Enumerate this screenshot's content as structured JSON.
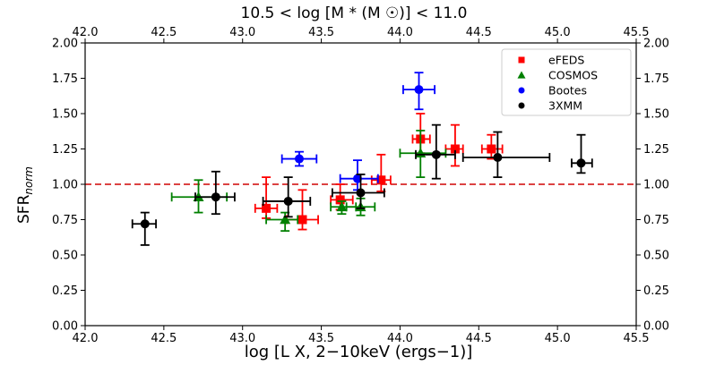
{
  "chart_data": {
    "type": "scatter",
    "title": "10.5 < log [M * (M ☉)] < 11.0",
    "xlabel": "log [L X, 2−10keV (ergs−1)]",
    "ylabel": "SFR norm",
    "xlim": [
      42.0,
      45.5
    ],
    "ylim": [
      0.0,
      2.0
    ],
    "x_ticks": [
      "42.0",
      "42.5",
      "43.0",
      "43.5",
      "44.0",
      "44.5",
      "45.0",
      "45.5"
    ],
    "y_ticks": [
      "0.00",
      "0.25",
      "0.50",
      "0.75",
      "1.00",
      "1.25",
      "1.50",
      "1.75",
      "2.00"
    ],
    "reference_line": {
      "y": 1.0,
      "style": "dashed",
      "color": "#d62728"
    },
    "legend_position": "top-right",
    "series": [
      {
        "name": "eFEDS",
        "color": "#ff0000",
        "marker": "square",
        "points": [
          {
            "x": 43.15,
            "y": 0.83,
            "xlo": 43.08,
            "xhi": 43.22,
            "ylo": 0.76,
            "yhi": 1.05
          },
          {
            "x": 43.38,
            "y": 0.75,
            "xlo": 43.28,
            "xhi": 43.48,
            "ylo": 0.68,
            "yhi": 0.96
          },
          {
            "x": 43.62,
            "y": 0.89,
            "xlo": 43.56,
            "xhi": 43.7,
            "ylo": 0.82,
            "yhi": 1.0
          },
          {
            "x": 43.88,
            "y": 1.03,
            "xlo": 43.82,
            "xhi": 43.94,
            "ylo": 0.95,
            "yhi": 1.21
          },
          {
            "x": 44.13,
            "y": 1.32,
            "xlo": 44.08,
            "xhi": 44.19,
            "ylo": 1.22,
            "yhi": 1.5
          },
          {
            "x": 44.35,
            "y": 1.25,
            "xlo": 44.29,
            "xhi": 44.4,
            "ylo": 1.13,
            "yhi": 1.42
          },
          {
            "x": 44.58,
            "y": 1.25,
            "xlo": 44.52,
            "xhi": 44.65,
            "ylo": 1.18,
            "yhi": 1.35
          }
        ]
      },
      {
        "name": "COSMOS",
        "color": "#008000",
        "marker": "triangle",
        "points": [
          {
            "x": 42.72,
            "y": 0.91,
            "xlo": 42.55,
            "xhi": 42.9,
            "ylo": 0.8,
            "yhi": 1.03
          },
          {
            "x": 43.27,
            "y": 0.75,
            "xlo": 43.15,
            "xhi": 43.35,
            "ylo": 0.67,
            "yhi": 0.8
          },
          {
            "x": 43.63,
            "y": 0.84,
            "xlo": 43.56,
            "xhi": 43.72,
            "ylo": 0.79,
            "yhi": 0.88
          },
          {
            "x": 43.75,
            "y": 0.84,
            "xlo": 43.66,
            "xhi": 43.84,
            "ylo": 0.78,
            "yhi": 0.9
          },
          {
            "x": 44.13,
            "y": 1.22,
            "xlo": 44.0,
            "xhi": 44.29,
            "ylo": 1.05,
            "yhi": 1.38
          }
        ]
      },
      {
        "name": "Bootes",
        "color": "#0000ff",
        "marker": "circle",
        "points": [
          {
            "x": 43.36,
            "y": 1.18,
            "xlo": 43.25,
            "xhi": 43.47,
            "ylo": 1.13,
            "yhi": 1.23
          },
          {
            "x": 43.73,
            "y": 1.04,
            "xlo": 43.62,
            "xhi": 43.86,
            "ylo": 0.96,
            "yhi": 1.17
          },
          {
            "x": 44.12,
            "y": 1.67,
            "xlo": 44.02,
            "xhi": 44.22,
            "ylo": 1.53,
            "yhi": 1.79
          }
        ]
      },
      {
        "name": "3XMM",
        "color": "#000000",
        "marker": "circle",
        "points": [
          {
            "x": 42.38,
            "y": 0.72,
            "xlo": 42.3,
            "xhi": 42.45,
            "ylo": 0.57,
            "yhi": 0.8
          },
          {
            "x": 42.83,
            "y": 0.91,
            "xlo": 42.7,
            "xhi": 42.95,
            "ylo": 0.79,
            "yhi": 1.09
          },
          {
            "x": 43.29,
            "y": 0.88,
            "xlo": 43.13,
            "xhi": 43.43,
            "ylo": 0.77,
            "yhi": 1.05
          },
          {
            "x": 43.75,
            "y": 0.94,
            "xlo": 43.57,
            "xhi": 43.9,
            "ylo": 0.83,
            "yhi": 1.07
          },
          {
            "x": 44.23,
            "y": 1.21,
            "xlo": 44.1,
            "xhi": 44.35,
            "ylo": 1.04,
            "yhi": 1.42
          },
          {
            "x": 44.62,
            "y": 1.19,
            "xlo": 44.4,
            "xhi": 44.95,
            "ylo": 1.05,
            "yhi": 1.37
          },
          {
            "x": 45.15,
            "y": 1.15,
            "xlo": 45.09,
            "xhi": 45.22,
            "ylo": 1.08,
            "yhi": 1.35
          }
        ]
      }
    ]
  }
}
